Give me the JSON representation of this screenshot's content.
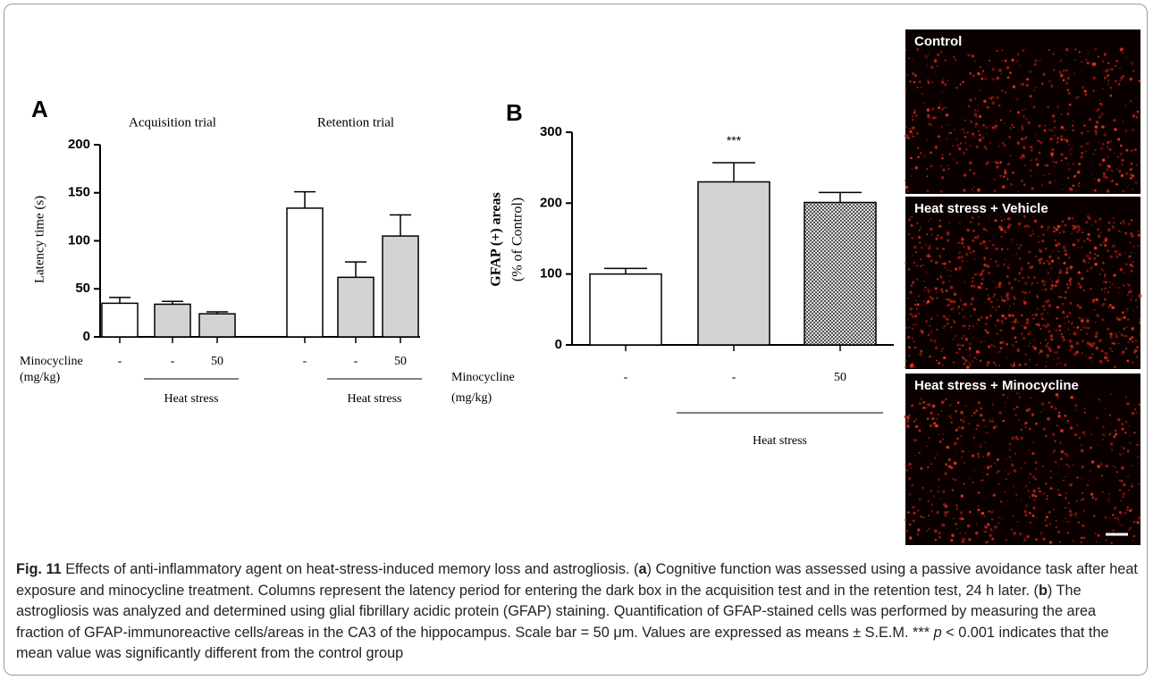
{
  "chart_data": [
    {
      "type": "bar",
      "panel": "A",
      "y_label": "Latency time (s)",
      "group_titles": [
        "Acquisition trial",
        "Retention trial"
      ],
      "categories": [
        "-",
        "-",
        "50",
        "-",
        "-",
        "50"
      ],
      "values": [
        35,
        34,
        24,
        134,
        62,
        105
      ],
      "errors": [
        6,
        3,
        2,
        17,
        16,
        22
      ],
      "fills": [
        "#ffffff",
        "#d3d3d3",
        "#d3d3d3",
        "#ffffff",
        "#d3d3d3",
        "#d3d3d3"
      ],
      "row_label": [
        "Minocycline",
        "(mg/kg)"
      ],
      "bracket_label": "Heat stress",
      "ylim": [
        0,
        200
      ],
      "yticks": [
        0,
        50,
        100,
        150,
        200
      ]
    },
    {
      "type": "bar",
      "panel": "B",
      "y_label": [
        "GFAP (+) areas",
        "(% of Control)"
      ],
      "categories": [
        "-",
        "-",
        "50"
      ],
      "values": [
        100,
        230,
        201
      ],
      "errors": [
        8,
        27,
        14
      ],
      "significance": [
        null,
        "***",
        null
      ],
      "fills": [
        "#ffffff",
        "#d3d3d3",
        "checker"
      ],
      "row_label": [
        "Minocycline",
        "(mg/kg)"
      ],
      "bracket_label": "Heat stress",
      "ylim": [
        0,
        300
      ],
      "yticks": [
        0,
        100,
        200,
        300
      ]
    }
  ],
  "images": [
    {
      "label": "Control"
    },
    {
      "label": "Heat stress + Vehicle"
    },
    {
      "label": "Heat stress + Minocycline"
    }
  ],
  "caption": [
    "Fig. 11",
    " Effects of anti-inflammatory agent on heat-stress-induced memory loss and astrogliosis. (",
    "a",
    ") Cognitive function was assessed using a passive avoidance task after heat exposure and minocycline treatment. Columns represent the latency period for entering the dark box in the acquisition test and in the retention test, 24 h later. (",
    "b",
    ") The astrogliosis was analyzed and determined using glial fibrillary acidic protein (GFAP) staining. Quantification of GFAP-stained cells was performed by measuring the area fraction of GFAP-immunoreactive cells/areas in the CA3 of the hippocampus. Scale bar = 50 μm. Values are expressed as means ± S.E.M. *** ",
    "p",
    " < 0.001 indicates that the mean value was significantly different from the control group"
  ]
}
